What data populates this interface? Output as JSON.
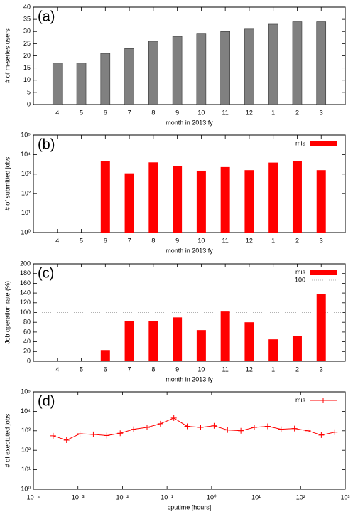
{
  "chart_data": [
    {
      "type": "bar",
      "annotation": "(a)",
      "x_label": "month in 2013 fy",
      "y_label": "# of m-series users",
      "categories": [
        "4",
        "5",
        "6",
        "7",
        "8",
        "9",
        "10",
        "11",
        "12",
        "1",
        "2",
        "3"
      ],
      "values": [
        17,
        17,
        21,
        23,
        26,
        28,
        29,
        30,
        31,
        33,
        34,
        34
      ],
      "color": "#808080",
      "ylim": [
        0,
        40
      ],
      "yticks": [
        0,
        5,
        10,
        15,
        20,
        25,
        30,
        35,
        40
      ]
    },
    {
      "type": "bar",
      "annotation": "(b)",
      "x_label": "month in 2013 fy",
      "y_label": "# of submitted jobs",
      "categories": [
        "4",
        "5",
        "6",
        "7",
        "8",
        "9",
        "10",
        "11",
        "12",
        "1",
        "2",
        "3"
      ],
      "series": [
        {
          "name": "mis",
          "color": "#ff0000",
          "values": [
            null,
            null,
            4500,
            1100,
            4000,
            2500,
            1500,
            2300,
            1600,
            3900,
            4700,
            1600
          ]
        }
      ],
      "ylog": true,
      "ylim": [
        1,
        100000
      ],
      "yticks": [
        {
          "value": 1,
          "label": "10⁰"
        },
        {
          "value": 10,
          "label": "10¹"
        },
        {
          "value": 100,
          "label": "10²"
        },
        {
          "value": 1000,
          "label": "10³"
        },
        {
          "value": 10000,
          "label": "10⁴"
        },
        {
          "value": 100000,
          "label": "10⁵"
        }
      ],
      "legend": "top-right"
    },
    {
      "type": "bar",
      "annotation": "(c)",
      "x_label": "month in 2013 fy",
      "y_label": "Job operation rate (%)",
      "categories": [
        "4",
        "5",
        "6",
        "7",
        "8",
        "9",
        "10",
        "11",
        "12",
        "1",
        "2",
        "3"
      ],
      "series": [
        {
          "name": "mis",
          "color": "#ff0000",
          "values": [
            null,
            null,
            23,
            83,
            82,
            90,
            64,
            102,
            80,
            45,
            52,
            138
          ]
        }
      ],
      "reference_line": {
        "name": "100",
        "value": 100,
        "color": "#999999"
      },
      "ylim": [
        0,
        200
      ],
      "yticks": [
        0,
        20,
        40,
        60,
        80,
        100,
        120,
        140,
        160,
        180,
        200
      ],
      "legend": "top-right"
    },
    {
      "type": "line",
      "annotation": "(d)",
      "x_label": "cputime [hours]",
      "y_label": "# of exectuted jobs",
      "x": [
        0.000278,
        0.000556,
        0.00111,
        0.00222,
        0.00444,
        0.00889,
        0.0178,
        0.0356,
        0.0711,
        0.142,
        0.284,
        0.569,
        1.14,
        2.28,
        4.55,
        9.1,
        18.2,
        36.4,
        72.8,
        145.6,
        291,
        583
      ],
      "series": [
        {
          "name": "mis",
          "color": "#ff0000",
          "values": [
            550,
            330,
            700,
            650,
            570,
            750,
            1200,
            1500,
            2300,
            4500,
            1700,
            1500,
            1800,
            1100,
            1000,
            1500,
            1700,
            1200,
            1300,
            1000,
            600,
            850
          ]
        }
      ],
      "xlog": true,
      "xlim": [
        0.0001,
        1000
      ],
      "xticks": [
        {
          "value": 0.0001,
          "label": "10⁻⁴"
        },
        {
          "value": 0.001,
          "label": "10⁻³"
        },
        {
          "value": 0.01,
          "label": "10⁻²"
        },
        {
          "value": 0.1,
          "label": "10⁻¹"
        },
        {
          "value": 1,
          "label": "10⁰"
        },
        {
          "value": 10,
          "label": "10¹"
        },
        {
          "value": 100,
          "label": "10²"
        },
        {
          "value": 1000,
          "label": "10³"
        }
      ],
      "ylog": true,
      "ylim": [
        1,
        100000
      ],
      "yticks": [
        {
          "value": 1,
          "label": "10⁰"
        },
        {
          "value": 10,
          "label": "10¹"
        },
        {
          "value": 100,
          "label": "10²"
        },
        {
          "value": 1000,
          "label": "10³"
        },
        {
          "value": 10000,
          "label": "10⁴"
        },
        {
          "value": 100000,
          "label": "10⁵"
        }
      ],
      "legend": "top-right"
    }
  ]
}
